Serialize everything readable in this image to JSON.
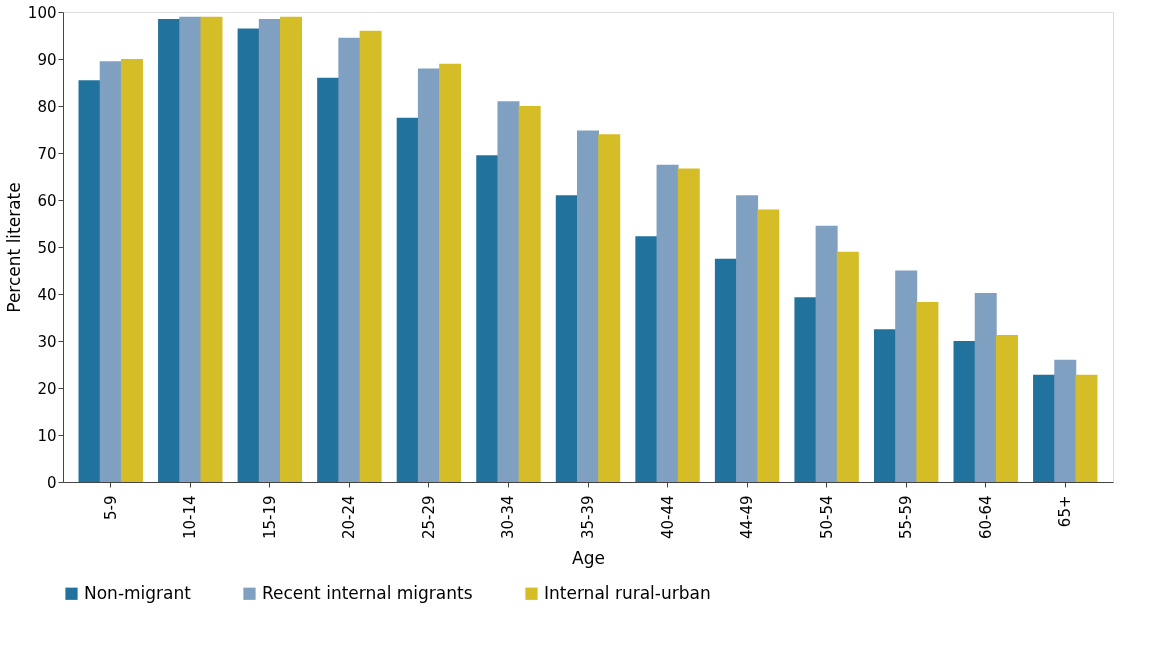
{
  "chart_data": {
    "type": "bar",
    "xlabel": "Age",
    "ylabel": "Percent literate",
    "categories": [
      "5-9",
      "10-14",
      "15-19",
      "20-24",
      "25-29",
      "30-34",
      "35-39",
      "40-44",
      "44-49",
      "50-54",
      "55-59",
      "60-64",
      "65+"
    ],
    "series": [
      {
        "name": "Non-migrant",
        "color": "#22729e",
        "values": [
          85.5,
          98.5,
          96.5,
          86,
          77.5,
          69.5,
          61,
          52.3,
          47.5,
          39.3,
          32.5,
          30,
          22.8
        ]
      },
      {
        "name": "Recent internal migrants",
        "color": "#80a0c1",
        "values": [
          89.5,
          99,
          98.5,
          94.5,
          88,
          81,
          74.8,
          67.5,
          61,
          54.5,
          45,
          40.2,
          26
        ]
      },
      {
        "name": "Internal rural-urban",
        "color": "#d5bd28",
        "values": [
          90,
          99,
          99,
          96,
          89,
          80,
          74,
          66.7,
          58,
          49,
          38.3,
          31.3,
          22.8
        ]
      }
    ],
    "ylim": [
      0,
      100
    ],
    "yticks": [
      0,
      10,
      20,
      30,
      40,
      50,
      60,
      70,
      80,
      90,
      100
    ],
    "grid": false,
    "legend": "bottom"
  }
}
